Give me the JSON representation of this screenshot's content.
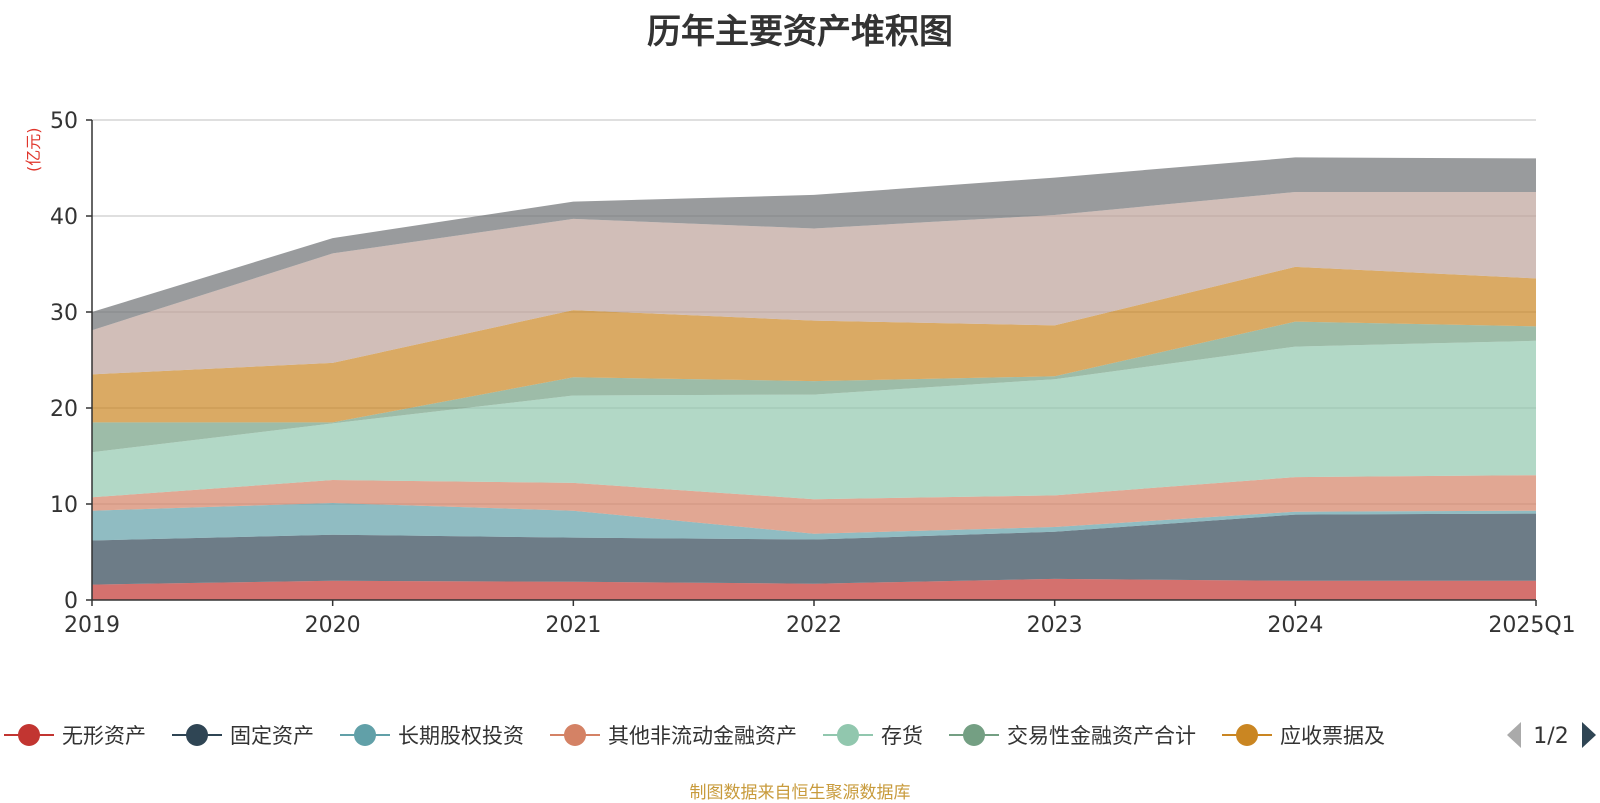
{
  "chart_data": {
    "type": "area",
    "stacked": true,
    "title": "历年主要资产堆积图",
    "ylabel": "(亿元)",
    "xlabel": "",
    "categories": [
      "2019",
      "2020",
      "2021",
      "2022",
      "2023",
      "2024",
      "2025Q1"
    ],
    "ylim": [
      0,
      50
    ],
    "yticks": [
      "0",
      "10",
      "20",
      "30",
      "40",
      "50"
    ],
    "grid": true,
    "series": [
      {
        "name": "无形资产",
        "color": "#c23531",
        "values": [
          1.6,
          2.0,
          1.9,
          1.7,
          2.2,
          2.0,
          2.0
        ]
      },
      {
        "name": "固定资产",
        "color": "#2f4554",
        "values": [
          4.6,
          4.8,
          4.6,
          4.6,
          4.9,
          6.9,
          7.0
        ]
      },
      {
        "name": "长期股权投资",
        "color": "#61a0a8",
        "values": [
          3.1,
          3.3,
          2.8,
          0.6,
          0.5,
          0.3,
          0.3
        ]
      },
      {
        "name": "其他非流动金融资产",
        "color": "#d48265",
        "values": [
          1.4,
          2.4,
          2.9,
          3.6,
          3.3,
          3.6,
          3.7
        ]
      },
      {
        "name": "存货",
        "color": "#91c7ae",
        "values": [
          4.7,
          5.9,
          9.1,
          10.9,
          12.1,
          13.6,
          14.0
        ]
      },
      {
        "name": "交易性金融资产合计",
        "color": "#749f83",
        "values": [
          3.1,
          0.1,
          1.9,
          1.4,
          0.3,
          2.6,
          1.5
        ]
      },
      {
        "name": "应收票据及",
        "color": "#ca8622",
        "values": [
          5.0,
          6.2,
          7.0,
          6.3,
          5.3,
          5.7,
          5.0
        ]
      },
      {
        "name": "",
        "color": "#bda29a",
        "values": [
          4.6,
          11.4,
          9.5,
          9.6,
          11.5,
          7.8,
          9.0
        ]
      },
      {
        "name": "",
        "color": "#6e7074",
        "values": [
          1.9,
          1.6,
          1.8,
          3.5,
          3.9,
          3.6,
          3.5
        ]
      }
    ],
    "legend": {
      "position": "bottom",
      "page": "1/2"
    }
  },
  "source_note": "制图数据来自恒生聚源数据库"
}
